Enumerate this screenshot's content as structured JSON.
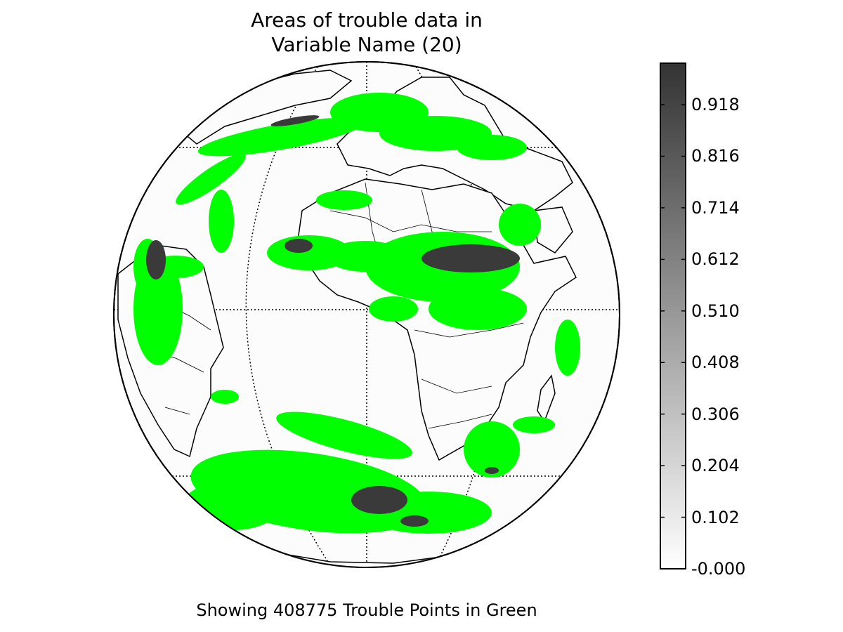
{
  "figure": {
    "title_lines": [
      "Areas of trouble data in",
      "Variable Name (20)"
    ],
    "caption": "Showing 408775 Trouble Points in Green",
    "projection": "orthographic globe centered on Africa / Atlantic",
    "overlay_color": "#00ff00",
    "severity_color": "#3a3a3a",
    "ocean_color": "#fcfcfc"
  },
  "colorbar": {
    "min": -0.0,
    "max": 1.0,
    "colormap": "greys (white to dark gray)",
    "ticks": [
      "-0.000",
      "0.102",
      "0.204",
      "0.306",
      "0.408",
      "0.510",
      "0.612",
      "0.714",
      "0.816",
      "0.918"
    ]
  }
}
